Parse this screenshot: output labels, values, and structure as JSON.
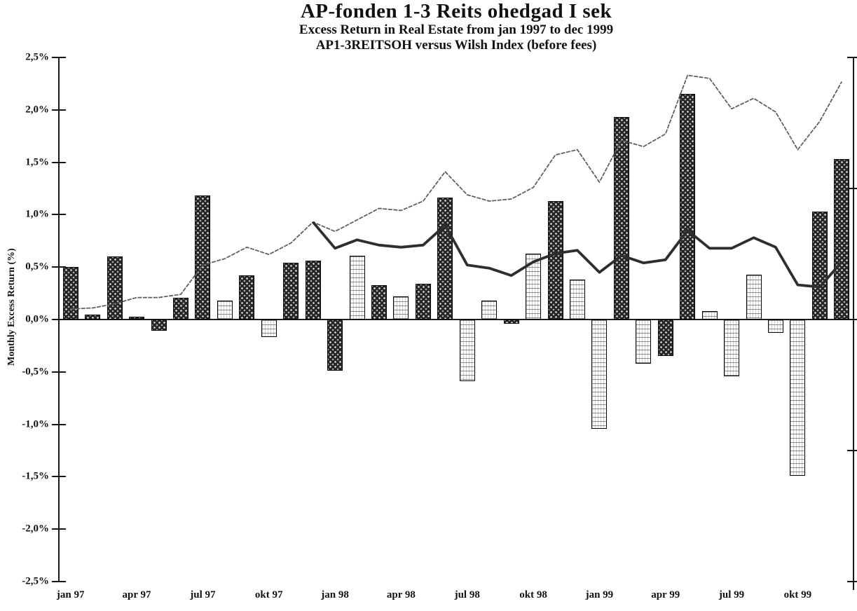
{
  "header": {
    "title": "AP-fonden 1-3 Reits ohedgad I sek",
    "subtitle1": "Excess Return in Real Estate from jan 1997 to dec 1999",
    "subtitle2": "AP1-3REITSOH versus Wilsh Index  (before fees)"
  },
  "chart_data": {
    "type": "bar",
    "title": "AP-fonden 1-3 Reits ohedgad I sek",
    "subtitle1": "Excess Return in Real Estate from jan 1997 to dec 1999",
    "subtitle2": "AP1-3REITSOH versus Wilsh Index  (before fees)",
    "ylabel": "Monthly Excess Return (%)",
    "xlabel": "",
    "ylim": [
      -2.5,
      2.5
    ],
    "ytick_step": 0.5,
    "grid": false,
    "legend": "none",
    "n_months": 36,
    "period": {
      "from": "jan 1997",
      "to": "dec 1999"
    },
    "ytick_labels": [
      "2,5%",
      "2,0%",
      "1,5%",
      "1,0%",
      "0,5%",
      "0,0%",
      "-0,5%",
      "-1,0%",
      "-1,5%",
      "-2,0%",
      "-2,5%"
    ],
    "x_tick_labels": [
      "jan 97",
      "apr 97",
      "jul 97",
      "okt 97",
      "jan 98",
      "apr 98",
      "jul 98",
      "okt 98",
      "jan 99",
      "apr 99",
      "jul 99",
      "okt 99"
    ],
    "bars": {
      "name": "monthly-excess-return-bars",
      "values": [
        0.5,
        0.05,
        0.6,
        0.03,
        -0.11,
        0.21,
        1.18,
        0.18,
        0.42,
        -0.17,
        0.54,
        0.56,
        -0.49,
        0.61,
        0.33,
        0.22,
        0.34,
        1.16,
        -0.59,
        0.18,
        -0.04,
        0.63,
        1.13,
        0.38,
        -1.04,
        1.93,
        -0.42,
        -0.35,
        2.15,
        0.08,
        -0.54,
        0.43,
        -0.13,
        -1.49,
        1.03,
        1.53
      ],
      "patterns": [
        "dark",
        "dark",
        "dark",
        "dark",
        "dark",
        "dark",
        "dark",
        "light",
        "dark",
        "light",
        "dark",
        "dark",
        "dark",
        "light",
        "dark",
        "light",
        "dark",
        "dark",
        "light",
        "light",
        "dark",
        "light",
        "dark",
        "light",
        "light",
        "dark",
        "light",
        "dark",
        "dark",
        "light",
        "light",
        "light",
        "light",
        "light",
        "dark",
        "dark"
      ]
    },
    "lines": [
      {
        "name": "thin-upper-line",
        "style": "thin",
        "color": "#5a5a5a",
        "width": 1.7,
        "start_index": 0,
        "values": [
          0.1,
          0.11,
          0.15,
          0.21,
          0.21,
          0.24,
          0.52,
          0.58,
          0.69,
          0.62,
          0.73,
          0.93,
          0.84,
          0.95,
          1.06,
          1.04,
          1.13,
          1.41,
          1.19,
          1.13,
          1.15,
          1.26,
          1.57,
          1.62,
          1.31,
          1.71,
          1.65,
          1.77,
          2.33,
          2.3,
          2.01,
          2.11,
          1.98,
          1.62,
          1.89,
          2.27
        ]
      },
      {
        "name": "thick-lower-line",
        "style": "thick",
        "color": "#2e2e2e",
        "width": 3.8,
        "start_index": 11,
        "values": [
          0.93,
          0.68,
          0.76,
          0.71,
          0.69,
          0.71,
          0.9,
          0.52,
          0.49,
          0.42,
          0.55,
          0.63,
          0.66,
          0.45,
          0.61,
          0.54,
          0.57,
          0.85,
          0.68,
          0.68,
          0.78,
          0.69,
          0.33,
          0.31,
          0.55
        ]
      }
    ],
    "colors": {
      "bar_dark": "#262626",
      "bar_light": "#fcfcfc",
      "axis": "#1a1a1a",
      "background": "#ffffff"
    }
  }
}
